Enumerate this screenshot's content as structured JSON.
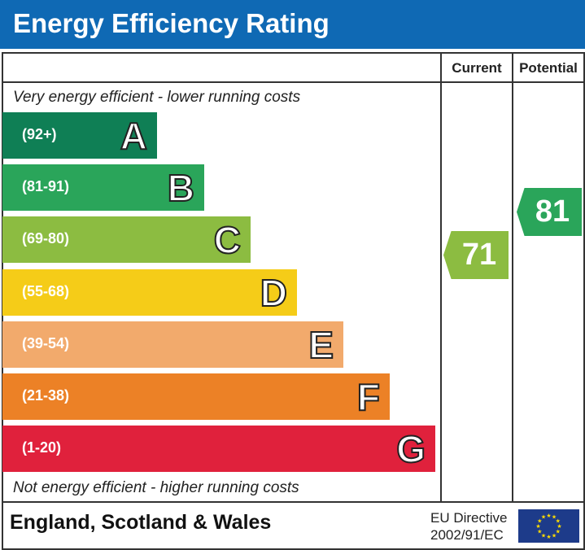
{
  "chart_data": {
    "type": "bar",
    "title": "Energy Efficiency Rating",
    "top_note": "Very energy efficient - lower running costs",
    "bottom_note": "Not energy efficient - higher running costs",
    "columns": [
      "Current",
      "Potential"
    ],
    "bands": [
      {
        "letter": "A",
        "range": "(92+)",
        "color": "#0f7f55"
      },
      {
        "letter": "B",
        "range": "(81-91)",
        "color": "#2aa55a"
      },
      {
        "letter": "C",
        "range": "(69-80)",
        "color": "#8cbc41"
      },
      {
        "letter": "D",
        "range": "(55-68)",
        "color": "#f5cc18"
      },
      {
        "letter": "E",
        "range": "(39-54)",
        "color": "#f2aa6c"
      },
      {
        "letter": "F",
        "range": "(21-38)",
        "color": "#ec8126"
      },
      {
        "letter": "G",
        "range": "(1-20)",
        "color": "#e0213c"
      }
    ],
    "current": {
      "value": 71,
      "band": "C",
      "color": "#8cbc41"
    },
    "potential": {
      "value": 81,
      "band": "B",
      "color": "#2aa55a"
    }
  },
  "footer": {
    "region": "England, Scotland & Wales",
    "directive_line1": "EU Directive",
    "directive_line2": "2002/91/EC",
    "flag_icon": "eu-flag-icon"
  },
  "colors": {
    "title_bar": "#0f69b4"
  }
}
